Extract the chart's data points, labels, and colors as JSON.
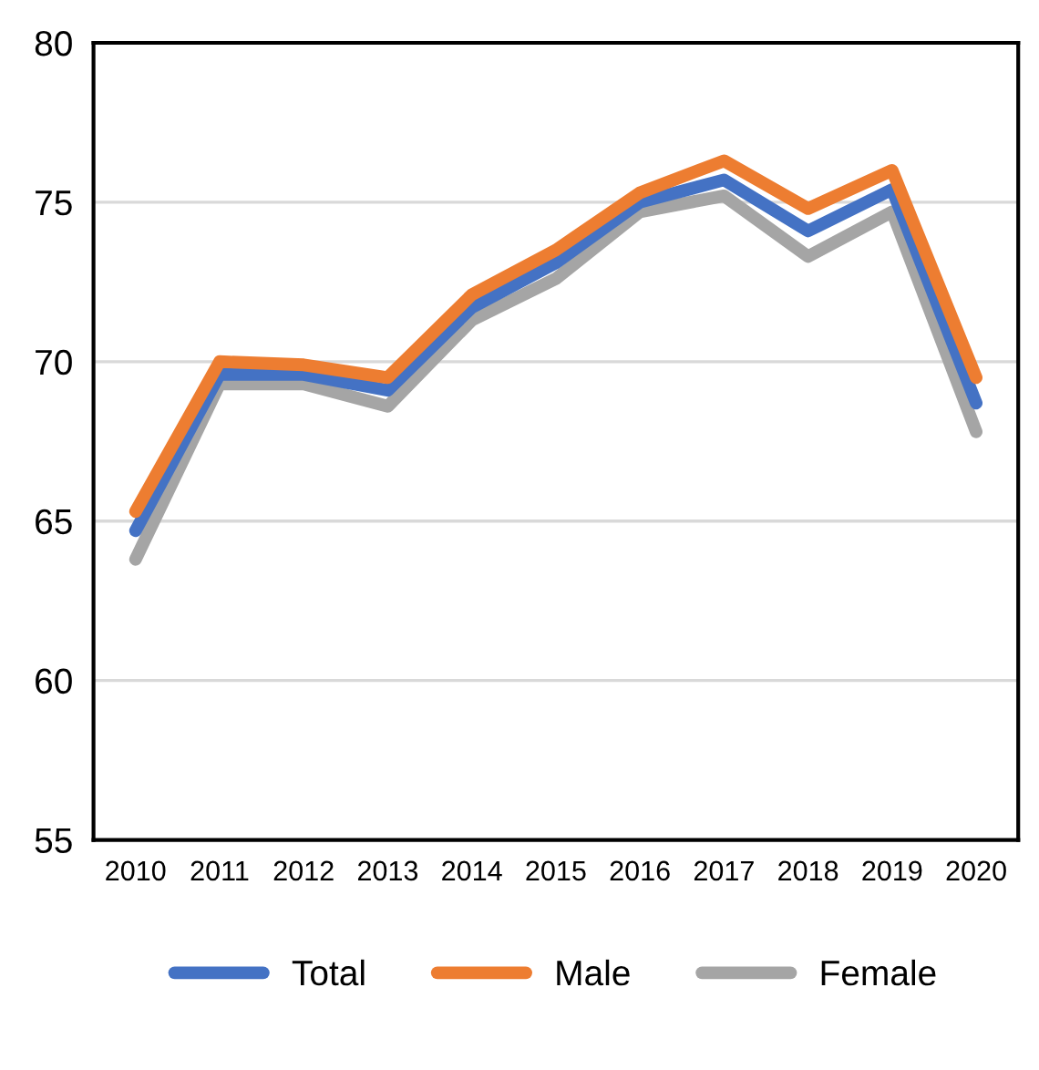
{
  "chart_data": {
    "type": "line",
    "categories": [
      "2010",
      "2011",
      "2012",
      "2013",
      "2014",
      "2015",
      "2016",
      "2017",
      "2018",
      "2019",
      "2020"
    ],
    "series": [
      {
        "name": "Total",
        "color": "#4472c4",
        "values": [
          64.7,
          69.6,
          69.6,
          69.1,
          71.7,
          73.1,
          75.0,
          75.7,
          74.1,
          75.4,
          68.7
        ]
      },
      {
        "name": "Male",
        "color": "#ed7d31",
        "values": [
          65.3,
          70.0,
          69.9,
          69.5,
          72.1,
          73.5,
          75.3,
          76.3,
          74.8,
          76.0,
          69.5
        ]
      },
      {
        "name": "Female",
        "color": "#a5a5a5",
        "values": [
          63.8,
          69.3,
          69.3,
          68.6,
          71.3,
          72.6,
          74.7,
          75.2,
          73.3,
          74.7,
          67.8
        ]
      }
    ],
    "ylim": [
      55,
      80
    ],
    "yticks": [
      55,
      60,
      65,
      70,
      75,
      80
    ],
    "grid": "y",
    "legend": "bottom",
    "marker": "none",
    "line_style": "solid"
  }
}
